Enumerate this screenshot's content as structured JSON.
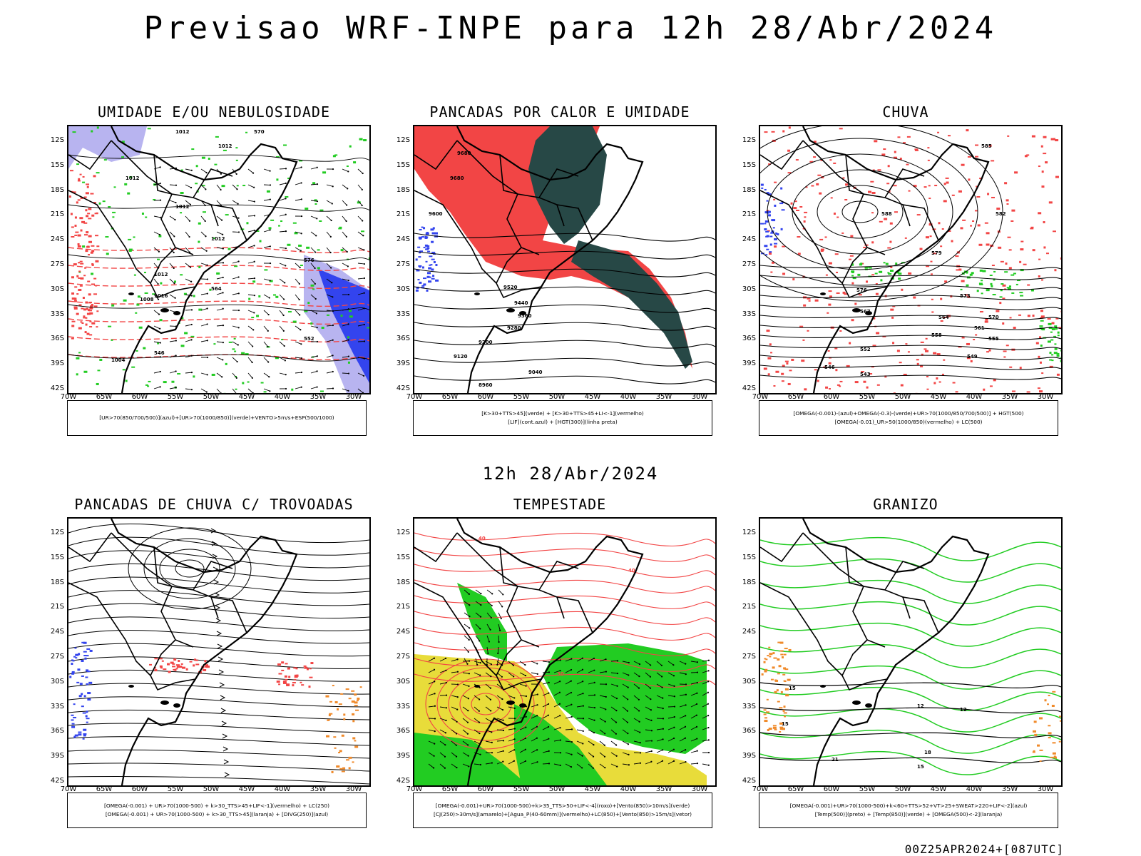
{
  "main_title": "Previsao WRF-INPE  para 12h 28/Abr/2024",
  "subtitle": "12h 28/Abr/2024",
  "footer": "00Z25APR2024+[087UTC]",
  "lat_labels": [
    "12S",
    "15S",
    "18S",
    "21S",
    "24S",
    "27S",
    "30S",
    "33S",
    "36S",
    "39S",
    "42S"
  ],
  "lon_labels": [
    "70W",
    "65W",
    "60W",
    "55W",
    "50W",
    "45W",
    "40W",
    "35W",
    "30W"
  ],
  "colors": {
    "red": "#f24545",
    "green": "#22cc22",
    "blue": "#3344ee",
    "lavender": "#b8b4f0",
    "darkteal": "#274846",
    "yellow": "#e8dc3a",
    "orange": "#f08a2a",
    "black": "#000000"
  },
  "panels": [
    {
      "title": "UMIDADE E/OU NEBULOSIDADE",
      "legend": [
        "[UR>70(850/700/500)](azul)+[UR>70(1000/850)](verde)+VENTO>5m/s+ESP(500/1000)"
      ],
      "map_labels": [
        "1012",
        "1012",
        "1012",
        "1012",
        "1012",
        "1012",
        "1008",
        "1004",
        "1016",
        "570",
        "576",
        "564",
        "552",
        "546"
      ]
    },
    {
      "title": "PANCADAS POR CALOR E UMIDADE",
      "legend": [
        "[K>30+TTS>45](verde) + [K>30+TTS>45+LI<-1](vermelho)",
        "[LIF](cont.azul) + [HGT(300)](linha preta)"
      ],
      "map_labels": [
        "9680",
        "9680",
        "9600",
        "9520",
        "9440",
        "9360",
        "9280",
        "9200",
        "9120",
        "9040",
        "8960"
      ]
    },
    {
      "title": "CHUVA",
      "legend": [
        "[OMEGA(-0.001)-(azul)+OMEGA(-0.3)-(verde)+UR>70(1000/850/700/500)] + HGT(500)",
        "[OMEGA(-0.01)_UR>50(1000/850)(vermelho) + LC(500)"
      ],
      "map_labels": [
        "588",
        "585",
        "582",
        "579",
        "576",
        "573",
        "570",
        "567",
        "564",
        "561",
        "558",
        "555",
        "552",
        "549",
        "546",
        "543"
      ]
    },
    {
      "title": "PANCADAS DE CHUVA C/ TROVOADAS",
      "legend": [
        "[OMEGA(-0.001) + UR>70(1000-500) + k>30_TTS>45+LIF<-1](vermelho) + LC(250)",
        "[OMEGA(-0.001) + UR>70(1000-500) + k>30_TTS>45](laranja) + [DIVG(250)](azul)"
      ],
      "map_labels": []
    },
    {
      "title": "TEMPESTADE",
      "legend": [
        "[OMEGA(-0.001)+UR>70(1000-500)+k>35_TTS>50+LIF<-4](roxo)+[Vento(850)>10m/s](verde)",
        "[CJ(250)>30m/s](amarelo)+[Agua_P(40-60mm)](vermelho)+LC(850)+[Vento(850)>15m/s](vetor)"
      ],
      "map_labels": [
        "40",
        "40",
        "30"
      ]
    },
    {
      "title": "GRANIZO",
      "legend": [
        "[OMEGA(-0.001)+UR>70(1000-500)+k<60+TTS>52+VT>25+SWEAT>220+LIF<-2](azul)",
        "[Temp(500)](preto) + [Temp(850)](verde) + [OMEGA(500)<-2](laranja)"
      ],
      "map_labels": [
        "15",
        "12",
        "12",
        "15",
        "18",
        "21",
        "15"
      ]
    }
  ]
}
